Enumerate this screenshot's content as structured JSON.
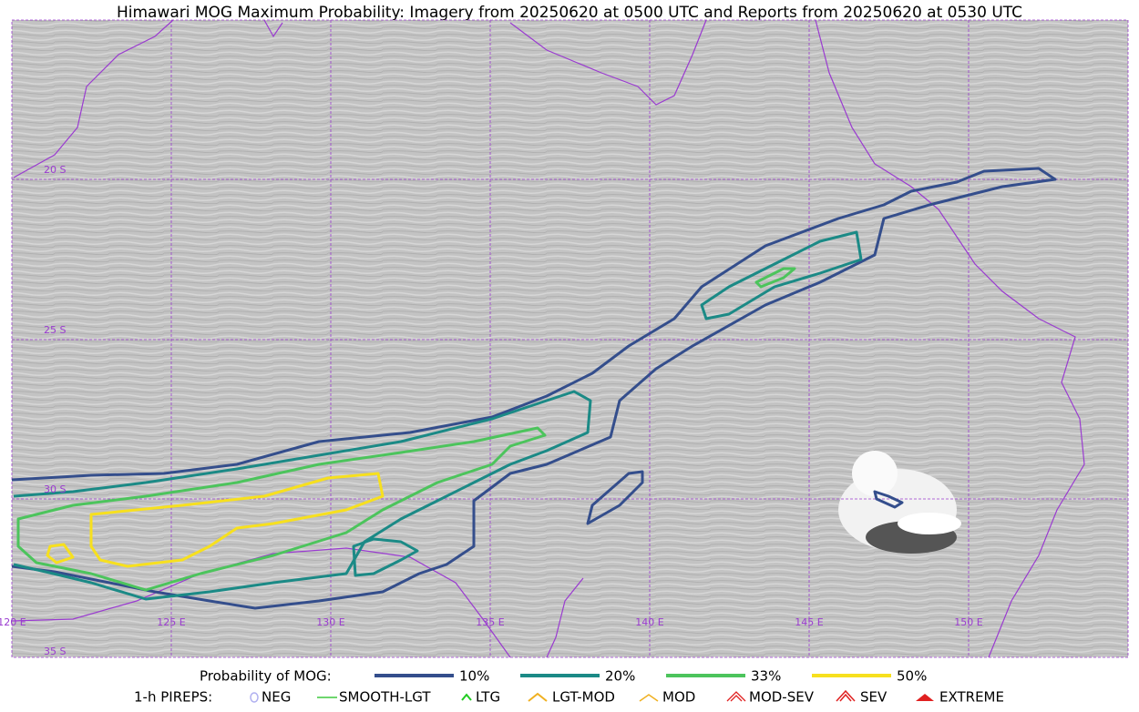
{
  "header": {
    "title": "Himawari MOG Maximum Probability: Imagery from 20250620 at 0500 UTC and Reports from 20250620 at 0530 UTC"
  },
  "map": {
    "lat_labels": [
      "20 S",
      "25 S",
      "30 S",
      "35 S"
    ],
    "lon_labels": [
      "120 E",
      "125 E",
      "130 E",
      "135 E",
      "140 E",
      "145 E",
      "150 E"
    ]
  },
  "legend": {
    "probability": {
      "label": "Probability of MOG:",
      "items": [
        {
          "label": "10%",
          "color": "#344e8c"
        },
        {
          "label": "20%",
          "color": "#1b8a86"
        },
        {
          "label": "33%",
          "color": "#4cc45c"
        },
        {
          "label": "50%",
          "color": "#f7e01e"
        }
      ]
    },
    "pireps": {
      "label": "1-h PIREPS:",
      "items": [
        "NEG",
        "SMOOTH-LGT",
        "LTG",
        "LGT-MOD",
        "MOD",
        "MOD-SEV",
        "SEV",
        "EXTREME"
      ]
    }
  }
}
